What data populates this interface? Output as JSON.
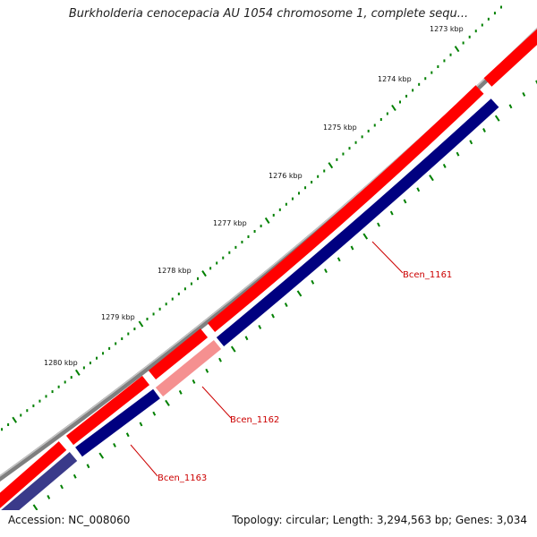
{
  "title": "Burkholderia cenocepacia AU 1054 chromosome 1, complete sequ...",
  "ticks": [
    "1273 kbp",
    "1274 kbp",
    "1275 kbp",
    "1276 kbp",
    "1277 kbp",
    "1278 kbp",
    "1279 kbp",
    "1280 kbp"
  ],
  "genes": [
    "Bcen_1161",
    "Bcen_1162",
    "Bcen_1163"
  ],
  "footer": {
    "accession": "Accession: NC_008060",
    "summary": "Topology: circular; Length: 3,294,563 bp; Genes: 3,034"
  },
  "colors": {
    "backbone": "#808080",
    "forward_gene": "#ff0000",
    "reverse_gene": "#000080",
    "highlight_gene": "#f59090",
    "tick": "#008000"
  }
}
